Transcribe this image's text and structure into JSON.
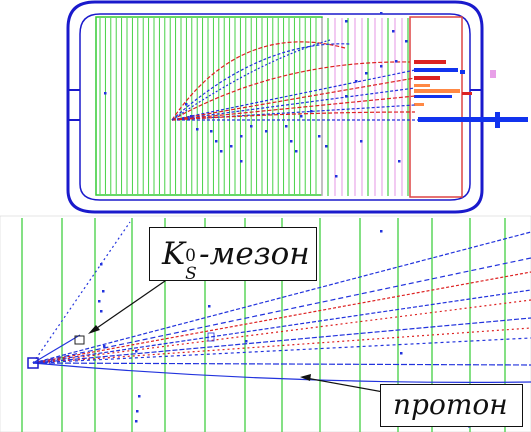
{
  "labels": {
    "kaon_main": "K",
    "kaon_sup": "0",
    "kaon_sub": "S",
    "kaon_suffix": "-мезон",
    "proton": "протон"
  },
  "colors": {
    "chamber_outline": "#1a1acc",
    "drift_wires": "#33cc33",
    "pink_wires": "#e8a0e8",
    "track_blue": "#2233dd",
    "track_red": "#dd2222",
    "hodoscope_orange": "#ff8844",
    "hodoscope_blue": "#1133ee"
  },
  "icons": [
    "callout-arrow-icon"
  ]
}
